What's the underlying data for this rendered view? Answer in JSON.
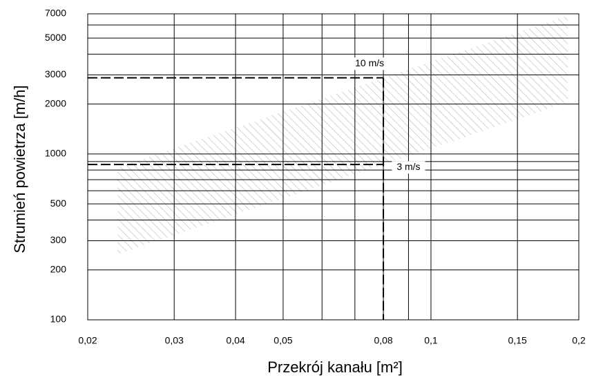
{
  "chart_data": {
    "type": "band",
    "x_label": "Przekrój kanału [m²]",
    "y_label": "Strumień powietrza [m/h]",
    "xlog": true,
    "ylog": true,
    "grid": true,
    "xlim": [
      0.02,
      0.2
    ],
    "ylim": [
      100,
      7000
    ],
    "xticks": [
      {
        "value": 0.02,
        "label": "0,02"
      },
      {
        "value": 0.03,
        "label": "0,03"
      },
      {
        "value": 0.04,
        "label": "0,04"
      },
      {
        "value": 0.05,
        "label": "0,05"
      },
      {
        "value": 0.08,
        "label": "0,08"
      },
      {
        "value": 0.1,
        "label": "0,1"
      },
      {
        "value": 0.15,
        "label": "0,15"
      },
      {
        "value": 0.2,
        "label": "0,2"
      }
    ],
    "xminor": [
      0.06,
      0.07,
      0.09
    ],
    "yticks": [
      100,
      200,
      300,
      500,
      1000,
      2000,
      3000,
      5000,
      7000
    ],
    "yminor": [
      400,
      600,
      700,
      800,
      900,
      4000,
      6000
    ],
    "band": {
      "x": [
        0.023,
        0.19
      ],
      "lower": [
        248,
        2052
      ],
      "upper": [
        828,
        6840
      ],
      "color": "#b0b0b0"
    },
    "reference": {
      "x": 0.08,
      "y_high": 2880,
      "y_low": 864
    },
    "annotations": [
      {
        "text": "10 m/s",
        "x": 0.075,
        "y": 3500
      },
      {
        "text": "3 m/s",
        "x": 0.09,
        "y": 830
      }
    ]
  }
}
